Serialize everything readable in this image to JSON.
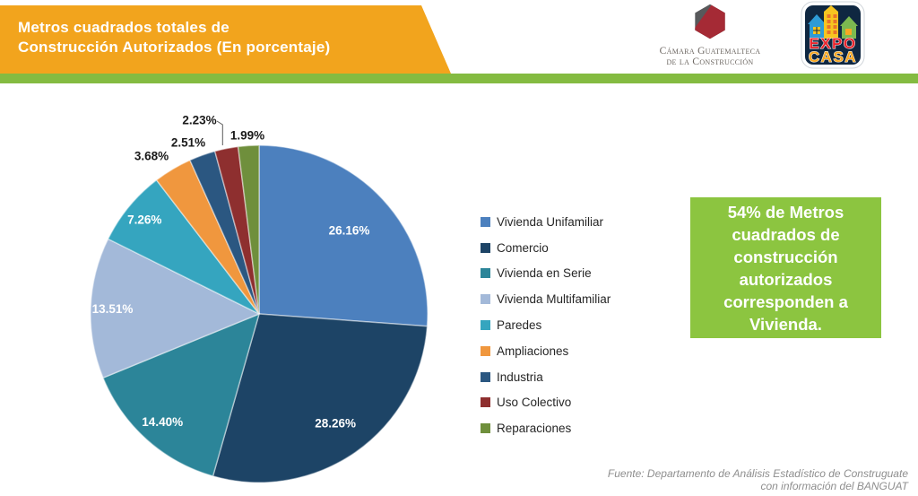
{
  "header": {
    "title_line1": "Metros cuadrados totales de",
    "title_line2": "Construcción Autorizados (En porcentaje)",
    "banner_color": "#F2A41D",
    "stripe_color": "#84BB41"
  },
  "logos": {
    "cgc": {
      "line1": "Cámara Guatemalteca",
      "line2": "de la Construcción",
      "gray": "#58595B",
      "red": "#A52A35"
    },
    "expocasa": {
      "line1": "EXPO",
      "line2": "CASA",
      "expo_color": "#E8262D",
      "casa_color": "#F7A823",
      "panel_color": "#0F2741"
    }
  },
  "chart_data": {
    "type": "pie",
    "title": "Metros cuadrados totales de Construcción Autorizados (En porcentaje)",
    "start_angle_deg": 0,
    "direction": "clockwise",
    "legend_position": "right",
    "categories": [
      "Vivienda Unifamiliar",
      "Comercio",
      "Vivienda en Serie",
      "Vivienda Multifamiliar",
      "Paredes",
      "Ampliaciones",
      "Industria",
      "Uso Colectivo",
      "Reparaciones"
    ],
    "values": [
      26.16,
      28.26,
      14.4,
      13.51,
      7.26,
      3.68,
      2.51,
      2.23,
      1.99
    ],
    "labels": [
      "26.16%",
      "28.26%",
      "14.40%",
      "13.51%",
      "7.26%",
      "3.68%",
      "2.51%",
      "2.23%",
      "1.99%"
    ],
    "colors": [
      "#4C80BE",
      "#1D4466",
      "#2C8599",
      "#A3B9D9",
      "#35A5BF",
      "#F0973E",
      "#2B5781",
      "#8E2F2F",
      "#6F8F3C"
    ]
  },
  "callout": {
    "text": "54% de Metros cuadrados de construcción autorizados corresponden a Vivienda.",
    "bg_color": "#8CC540"
  },
  "footer": {
    "line1": "Fuente: Departamento de Análisis Estadístico de Construguate",
    "line2": "con información del BANGUAT"
  }
}
